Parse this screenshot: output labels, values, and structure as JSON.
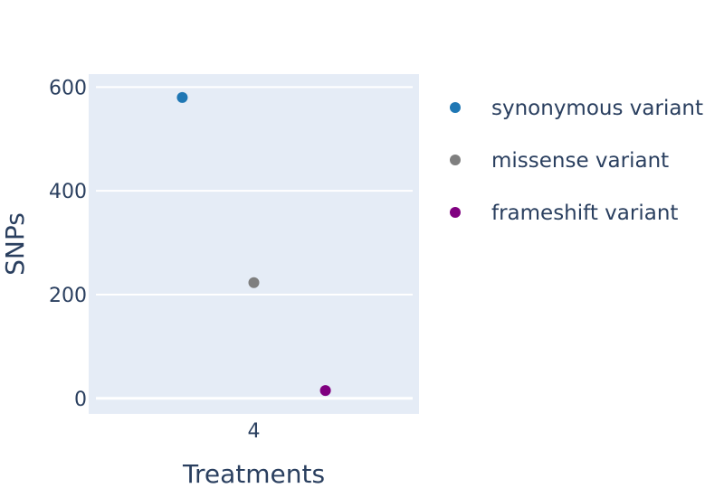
{
  "chart_data": {
    "type": "scatter",
    "xlabel": "Treatments",
    "ylabel": "SNPs",
    "categories": [
      "4"
    ],
    "ylim": [
      -30,
      625
    ],
    "yticks": [
      0,
      200,
      400,
      600
    ],
    "grid": true,
    "legend_position": "right",
    "series": [
      {
        "name": "synonymous variant",
        "x": "4",
        "y": 580,
        "color": "#1f77b4"
      },
      {
        "name": "missense variant",
        "x": "4",
        "y": 223,
        "color": "#7f7f7f"
      },
      {
        "name": "frameshift variant",
        "x": "4",
        "y": 15,
        "color": "#800080"
      }
    ]
  }
}
